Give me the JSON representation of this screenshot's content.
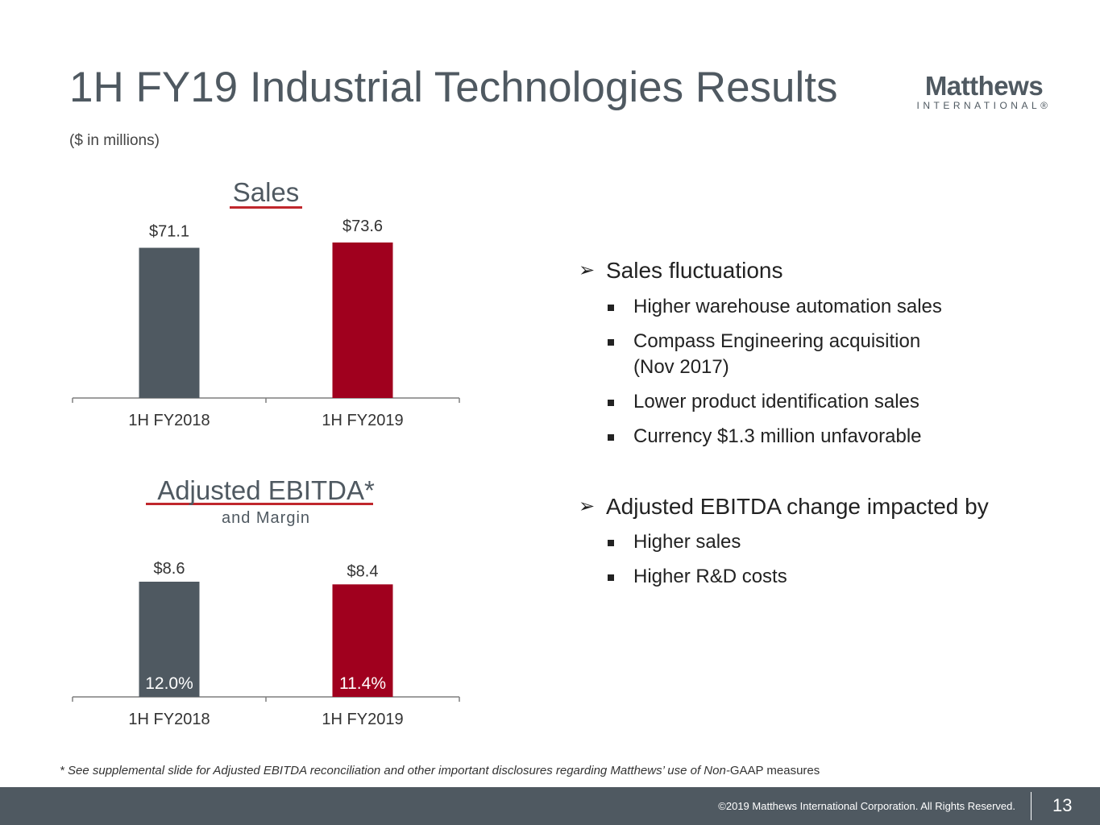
{
  "title": "1H FY19 Industrial Technologies Results",
  "subtitle": "($ in millions)",
  "logo": {
    "word": "Matthews",
    "sub": "INTERNATIONAL®"
  },
  "accent_red": "#a0001e",
  "slate_gray": "#4f5961",
  "chart_data": [
    {
      "type": "bar",
      "title": "Sales",
      "subtitle": "",
      "categories": [
        "1H FY2018",
        "1H FY2019"
      ],
      "values": [
        71.1,
        73.6
      ],
      "value_labels": [
        "$71.1",
        "$73.6"
      ],
      "inner_labels": [],
      "colors": [
        "#4f5961",
        "#a0001e"
      ],
      "xlabel": "",
      "ylabel": ""
    },
    {
      "type": "bar",
      "title": "Adjusted EBITDA*",
      "subtitle": "and Margin",
      "categories": [
        "1H FY2018",
        "1H FY2019"
      ],
      "values": [
        8.6,
        8.4
      ],
      "value_labels": [
        "$8.6",
        "$8.4"
      ],
      "inner_labels": [
        "12.0%",
        "11.4%"
      ],
      "colors": [
        "#4f5961",
        "#a0001e"
      ],
      "xlabel": "",
      "ylabel": ""
    }
  ],
  "bullets": {
    "sales_head": "Sales fluctuations",
    "sales_items": [
      "Higher warehouse automation sales",
      "Compass Engineering acquisition (Nov 2017)",
      "Lower product identification sales",
      "Currency $1.3 million unfavorable"
    ],
    "ebitda_head": "Adjusted EBITDA change impacted by",
    "ebitda_items": [
      "Higher sales",
      "Higher R&D costs"
    ]
  },
  "footnote": {
    "italic": "* See supplemental slide for Adjusted EBITDA reconciliation and other important disclosures regarding Matthews’ use of Non-",
    "normal": "GAAP measures"
  },
  "footer": {
    "copyright": "©2019 Matthews International Corporation. All Rights Reserved.",
    "page": "13"
  }
}
